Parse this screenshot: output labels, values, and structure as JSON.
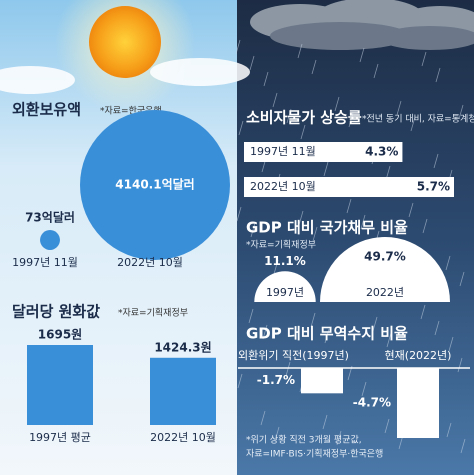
{
  "chart_data": [
    {
      "type": "circle",
      "title": "외환보유액",
      "source": "*자료=한국은행",
      "categories": [
        "1997년 11월",
        "2022년 10월"
      ],
      "values": [
        73,
        4140.1
      ],
      "value_labels": [
        "73억달러",
        "4140.1억달러"
      ],
      "color": "#3a8fd9"
    },
    {
      "type": "bar",
      "title": "달러당 원화값",
      "source": "*자료=기획재정부",
      "categories": [
        "1997년 평균",
        "2022년 10월"
      ],
      "values": [
        1695,
        1424.3
      ],
      "value_labels": [
        "1695원",
        "1424.3원"
      ],
      "color": "#3a8fd9"
    },
    {
      "type": "hbar",
      "title": "소비자물가 상승률",
      "source": "*전년 동기 대비, 자료=통계청",
      "categories": [
        "1997년 11월",
        "2022년 10월"
      ],
      "values": [
        4.3,
        5.7
      ],
      "value_labels": [
        "4.3%",
        "5.7%"
      ],
      "color": "#ffffff"
    },
    {
      "type": "semicircle",
      "title": "GDP 대비 국가채무 비율",
      "source": "*자료=기획재정부",
      "categories": [
        "1997년",
        "2022년"
      ],
      "values": [
        11.1,
        49.7
      ],
      "value_labels": [
        "11.1%",
        "49.7%"
      ],
      "color": "#ffffff"
    },
    {
      "type": "negbar",
      "title": "GDP 대비 무역수지 비율",
      "categories": [
        "외환위기 직전(1997년)",
        "현재(2022년)"
      ],
      "values": [
        -1.7,
        -4.7
      ],
      "value_labels": [
        "-1.7%",
        "-4.7%"
      ],
      "color": "#ffffff",
      "note": [
        "*위기 상황 직전 3개월 평균값,",
        "자료=IMF·BIS·기획재정부·한국은행"
      ]
    }
  ]
}
